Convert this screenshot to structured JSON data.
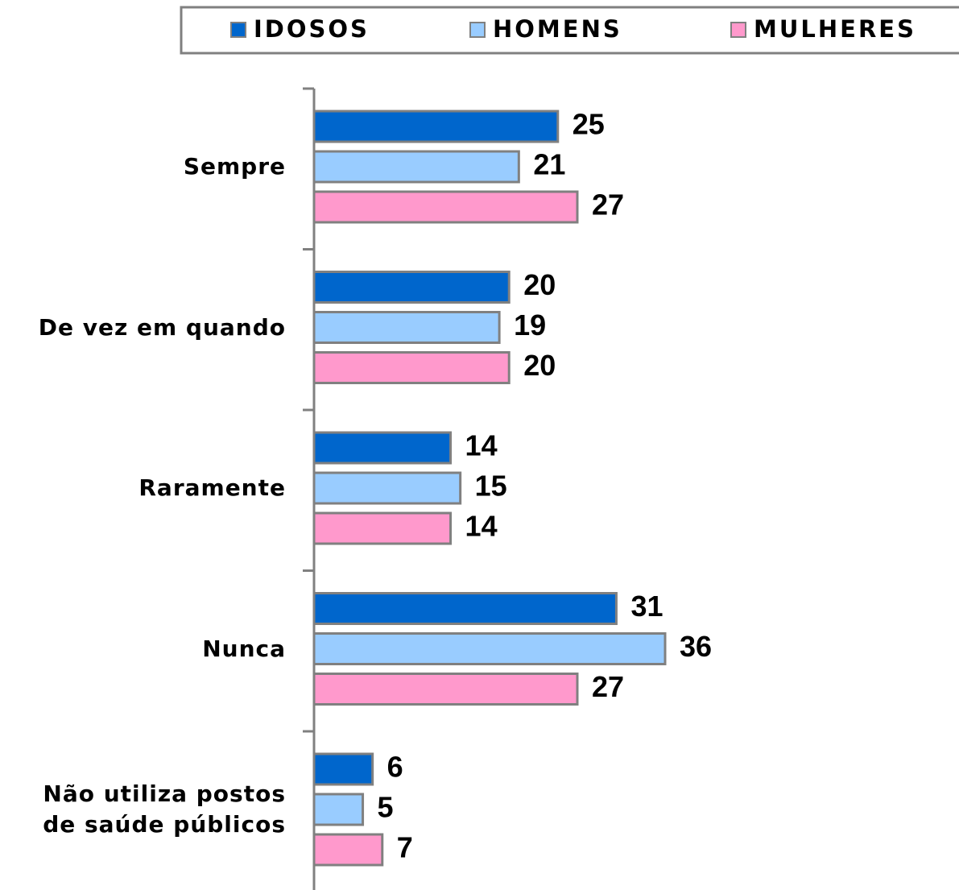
{
  "chart_data": {
    "type": "bar",
    "orientation": "horizontal",
    "categories": [
      "Sempre",
      "De vez em quando",
      "Raramente",
      "Nunca",
      "Não utiliza postos\nde saúde públicos"
    ],
    "series": [
      {
        "name": "IDOSOS",
        "color": "#0066cc",
        "values": [
          25,
          20,
          14,
          31,
          6
        ]
      },
      {
        "name": "HOMENS",
        "color": "#99ccff",
        "values": [
          21,
          19,
          15,
          36,
          5
        ]
      },
      {
        "name": "MULHERES",
        "color": "#ff99cc",
        "values": [
          27,
          20,
          14,
          27,
          7
        ]
      }
    ],
    "legend": "top"
  }
}
